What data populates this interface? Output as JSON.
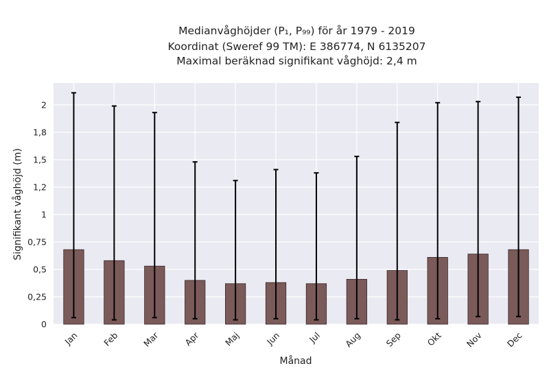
{
  "title_lines": [
    "Medianvåghöjder (P₁, P₉₉) för år 1979 - 2019",
    "Koordinat (Sweref 99 TM): E 386774, N 6135207",
    "Maximal beräknad signifikant våghöjd: 2,4 m"
  ],
  "chart_data": {
    "type": "bar",
    "xlabel": "Månad",
    "ylabel": "Signifikant våghöjd (m)",
    "categories": [
      "Jan",
      "Feb",
      "Mar",
      "Apr",
      "Maj",
      "Jun",
      "Jul",
      "Aug",
      "Sep",
      "Okt",
      "Nov",
      "Dec"
    ],
    "values": [
      0.68,
      0.58,
      0.53,
      0.4,
      0.37,
      0.38,
      0.37,
      0.41,
      0.49,
      0.61,
      0.64,
      0.68
    ],
    "error_low": [
      0.06,
      0.04,
      0.06,
      0.05,
      0.04,
      0.05,
      0.04,
      0.05,
      0.04,
      0.05,
      0.07,
      0.07
    ],
    "error_high": [
      2.11,
      1.99,
      1.93,
      1.48,
      1.31,
      1.41,
      1.38,
      1.53,
      1.84,
      2.02,
      2.03,
      2.07
    ],
    "ylim": [
      0,
      2.2
    ],
    "yticks": [
      0,
      0.25,
      0.5,
      0.75,
      1,
      1.25,
      1.5,
      1.75,
      2
    ],
    "ytick_labels": [
      "0",
      "0,25",
      "0,5",
      "0,75",
      "1",
      "1,2",
      "1,5",
      "1,8",
      "2"
    ],
    "grid": true,
    "colors": {
      "background": "#eaeaf2",
      "bar_fill": "#7b5a5a",
      "bar_edge": "#3a2a2a",
      "grid": "#ffffff",
      "error_bar": "#000000"
    }
  }
}
